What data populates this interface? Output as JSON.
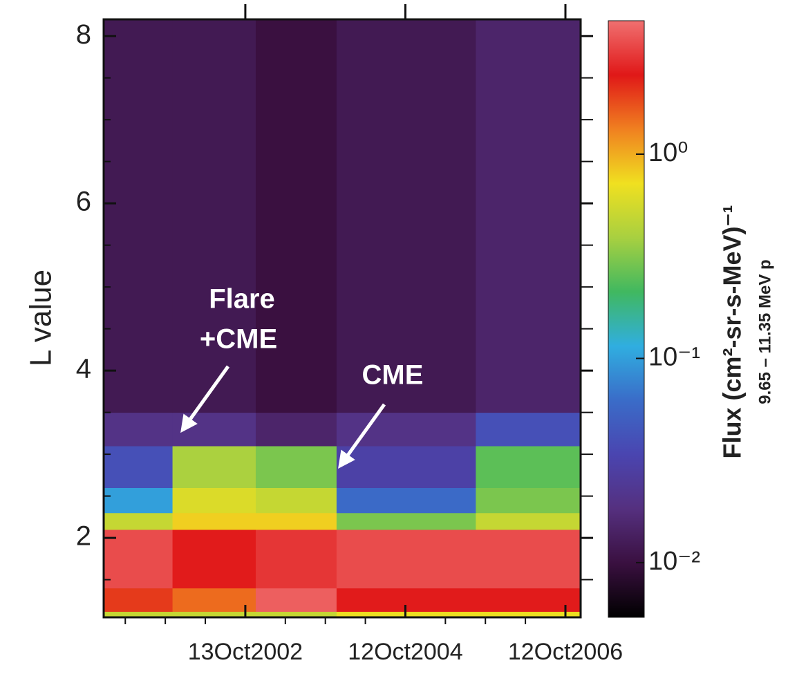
{
  "chart_data": {
    "type": "heatmap",
    "ylabel": "L value",
    "x": [
      2001.01,
      2001.87,
      2002.91,
      2003.92,
      2005.66,
      2006.97
    ],
    "y": [
      1.05,
      1.12,
      1.4,
      2.1,
      2.3,
      2.6,
      3.1,
      3.5,
      8.2
    ],
    "values": [
      [
        0.5,
        0.5,
        0.5,
        0.7,
        0.7
      ],
      [
        2,
        1.5,
        4,
        2.5,
        2.5
      ],
      [
        3.5,
        2.5,
        3,
        3.5,
        3.5
      ],
      [
        0.5,
        0.8,
        0.8,
        0.3,
        0.5
      ],
      [
        0.1,
        0.6,
        0.5,
        0.06,
        0.3
      ],
      [
        0.04,
        0.4,
        0.3,
        0.03,
        0.25
      ],
      [
        0.02,
        0.02,
        0.015,
        0.02,
        0.04
      ],
      [
        0.012,
        0.012,
        0.01,
        0.012,
        0.015
      ]
    ],
    "xlim": [
      2001.01,
      2006.97
    ],
    "xticks": [
      {
        "value": 2002.78,
        "label": "13Oct2002"
      },
      {
        "value": 2004.78,
        "label": "12Oct2004"
      },
      {
        "value": 2006.78,
        "label": "12Oct2006"
      }
    ],
    "xminorticks": [
      2001.28,
      2001.78,
      2002.28,
      2003.28,
      2003.78,
      2004.28,
      2005.28,
      2005.78,
      2006.28
    ],
    "ylim": [
      1.05,
      8.2
    ],
    "yticks": [
      2,
      4,
      6,
      8
    ],
    "yminorticks": [
      1.5,
      2.5,
      3,
      3.5,
      4.5,
      5,
      5.5,
      6.5,
      7,
      7.5
    ],
    "colorbar": {
      "label": "Flux (cm²-sr-s-MeV)⁻¹",
      "sublabel": "9.65 – 11.35 MeV p",
      "log": true,
      "lim": [
        0.0054,
        4.5
      ],
      "ticks": [
        {
          "value": 1,
          "label": "10⁰"
        },
        {
          "value": 0.1,
          "label": "10⁻¹"
        },
        {
          "value": 0.01,
          "label": "10⁻²"
        }
      ],
      "colors": [
        "#000000",
        "#3a1040",
        "#55307f",
        "#4a45b0",
        "#3a6cc8",
        "#30aee0",
        "#40b860",
        "#a8d040",
        "#f0e020",
        "#f08020",
        "#e01818",
        "#f07070"
      ]
    },
    "annotations": [
      {
        "text": [
          "Flare",
          "+CME"
        ]
      },
      {
        "text": [
          "CME"
        ]
      }
    ]
  }
}
